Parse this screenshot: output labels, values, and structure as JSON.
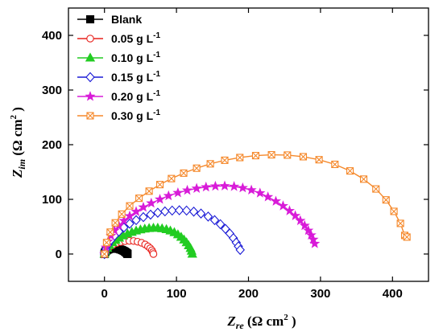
{
  "chart_data": {
    "type": "scatter",
    "x_axis": {
      "label": {
        "main": "Z",
        "sub": "re",
        "unit": " (Ω cm",
        "sup": "2",
        "close": " )"
      },
      "min": -50,
      "max": 450,
      "ticks": [
        0,
        100,
        200,
        300,
        400
      ],
      "tick_labels": [
        "0",
        "100",
        "200",
        "300",
        "400"
      ]
    },
    "y_axis": {
      "label": {
        "main": "Z",
        "sub": "im",
        "unit": " (Ω cm",
        "sup": "2",
        "close": " )"
      },
      "min": -50,
      "max": 450,
      "ticks": [
        0,
        100,
        200,
        300,
        400
      ],
      "tick_labels": [
        "0",
        "100",
        "200",
        "300",
        "400"
      ]
    },
    "legend_position": "top-left",
    "series": [
      {
        "name": "Blank",
        "unit": "",
        "sup": "",
        "color": "#000000",
        "marker": "square",
        "filled": true,
        "x": [
          0.0,
          0.4,
          1.1,
          2.1,
          3.4,
          5.1,
          7.0,
          9.2,
          11.6,
          14.2,
          16.8,
          19.4,
          22.0,
          24.4,
          26.6,
          28.5,
          30.0,
          31.2,
          31.9,
          32.0
        ],
        "y": [
          0.0,
          2.0,
          3.8,
          5.5,
          7.0,
          8.2,
          9.2,
          9.8,
          10.0,
          10.1,
          9.9,
          9.3,
          8.4,
          7.2,
          5.8,
          4.3,
          2.8,
          1.4,
          0.5,
          0.0
        ]
      },
      {
        "name": "0.05 g L",
        "unit": "",
        "sup": "-1",
        "color": "#e8211c",
        "marker": "circle",
        "filled": false,
        "x": [
          0.0,
          1.5,
          4.0,
          7.5,
          12.0,
          17.0,
          22.5,
          28.5,
          34.5,
          40.5,
          46.0,
          51.5,
          56.5,
          60.5,
          63.5,
          65.8,
          67.2,
          68.0
        ],
        "y": [
          0.0,
          5.0,
          9.5,
          13.5,
          17.0,
          20.0,
          22.0,
          23.5,
          24.0,
          23.8,
          22.5,
          20.5,
          17.5,
          14.0,
          10.5,
          6.8,
          3.2,
          0.0
        ]
      },
      {
        "name": "0.10 g L",
        "unit": "",
        "sup": "-1",
        "color": "#22cc22",
        "marker": "triangle",
        "filled": true,
        "x": [
          0.0,
          1.5,
          4.0,
          7.0,
          11.0,
          15.5,
          20.5,
          26.0,
          32.0,
          38.0,
          44.0,
          50.0,
          56.0,
          62.0,
          68.0,
          74.0,
          80.0,
          86.0,
          91.5,
          97.0,
          102.0,
          106.5,
          110.5,
          114.0,
          117.0,
          119.5,
          121.0,
          122.0
        ],
        "y": [
          0.0,
          5.5,
          11.0,
          16.0,
          21.0,
          25.5,
          29.5,
          33.5,
          37.0,
          40.0,
          42.5,
          44.5,
          46.0,
          47.0,
          47.5,
          47.5,
          46.5,
          45.0,
          42.5,
          39.5,
          35.5,
          31.0,
          26.0,
          21.0,
          15.5,
          10.5,
          5.5,
          0.0
        ]
      },
      {
        "name": "0.15 g L",
        "unit": "",
        "sup": "-1",
        "color": "#1a1ad6",
        "marker": "diamond",
        "filled": false,
        "x": [
          0.0,
          2.0,
          5.0,
          9.0,
          14.0,
          20.0,
          27.0,
          35.0,
          44.0,
          54.0,
          64.0,
          74.0,
          84.0,
          94.0,
          104.0,
          114.0,
          124.0,
          134.0,
          144.0,
          153.0,
          161.0,
          168.0,
          174.0,
          179.0,
          183.0,
          186.0,
          188.5
        ],
        "y": [
          0.0,
          9.0,
          17.5,
          25.5,
          33.5,
          41.0,
          48.5,
          55.5,
          62.0,
          67.5,
          72.0,
          75.5,
          78.0,
          79.5,
          80.0,
          79.5,
          77.5,
          74.0,
          68.5,
          62.0,
          54.5,
          46.0,
          37.5,
          29.0,
          21.0,
          14.0,
          7.5
        ]
      },
      {
        "name": "0.20 g L",
        "unit": "",
        "sup": "-1",
        "color": "#d81bd8",
        "marker": "star",
        "filled": true,
        "x": [
          0.0,
          2.0,
          5.0,
          9.0,
          14.0,
          20.0,
          27.0,
          35.0,
          44.0,
          54.0,
          65.0,
          77.0,
          89.0,
          102.0,
          115.0,
          128.0,
          141.0,
          154.0,
          167.0,
          180.0,
          192.0,
          204.0,
          216.0,
          227.0,
          238.0,
          248.0,
          257.0,
          265.0,
          272.0,
          278.0,
          283.0,
          287.0,
          290.0,
          292.0
        ],
        "y": [
          0.0,
          12.0,
          23.0,
          33.5,
          43.0,
          52.0,
          61.0,
          69.5,
          77.5,
          85.5,
          93.0,
          100.0,
          106.5,
          112.0,
          116.5,
          120.0,
          122.5,
          124.0,
          124.5,
          123.5,
          121.0,
          117.0,
          111.5,
          104.5,
          96.5,
          88.0,
          79.0,
          70.0,
          61.0,
          52.0,
          43.0,
          34.5,
          26.5,
          19.0
        ]
      },
      {
        "name": "0.30 g L",
        "unit": "",
        "sup": "-1",
        "color": "#f5882a",
        "marker": "cross-square",
        "filled": false,
        "x": [
          0.0,
          3.0,
          8.0,
          15.0,
          24.0,
          35.0,
          48.0,
          62.0,
          77.0,
          93.0,
          110.0,
          128.0,
          147.0,
          167.0,
          188.0,
          210.0,
          232.0,
          254.0,
          276.0,
          298.0,
          320.0,
          341.0,
          360.0,
          377.0,
          391.0,
          402.0,
          411.0,
          417.0,
          420.0
        ],
        "y": [
          0.0,
          21.0,
          40.0,
          57.0,
          73.0,
          88.0,
          102.0,
          115.0,
          127.0,
          138.0,
          148.0,
          157.0,
          165.0,
          171.5,
          176.5,
          180.0,
          181.5,
          181.0,
          178.0,
          172.5,
          164.0,
          152.0,
          137.0,
          119.0,
          99.0,
          78.0,
          56.0,
          34.0,
          31.0
        ]
      }
    ]
  }
}
